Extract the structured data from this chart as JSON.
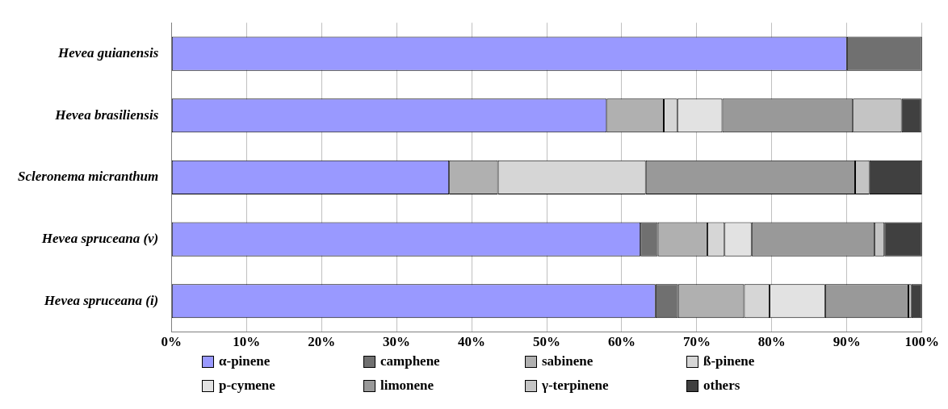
{
  "chart_data": {
    "type": "bar",
    "orientation": "horizontal",
    "stacked": true,
    "categories": [
      "Hevea guianensis",
      "Hevea brasiliensis",
      "Scleronema micranthum",
      "Hevea spruceana (v)",
      "Hevea spruceana (i)"
    ],
    "series": [
      {
        "name": "α-pinene",
        "color": "#9999ff",
        "values": [
          90,
          58,
          37,
          62.5,
          64.5
        ]
      },
      {
        "name": "camphene",
        "color": "#707070",
        "values": [
          10,
          0,
          0,
          2.3,
          3.0
        ]
      },
      {
        "name": "sabinene",
        "color": "#b0b0b0",
        "values": [
          0,
          7.6,
          6.5,
          6.6,
          8.8
        ]
      },
      {
        "name": "ß-pinene",
        "color": "#d6d6d6",
        "values": [
          0,
          1.8,
          19.7,
          2.3,
          3.4
        ]
      },
      {
        "name": "p-cymene",
        "color": "#e2e2e2",
        "values": [
          0,
          6.0,
          0,
          3.6,
          7.4
        ]
      },
      {
        "name": "limonene",
        "color": "#999999",
        "values": [
          0,
          17.4,
          27.9,
          16.4,
          11.1
        ]
      },
      {
        "name": "γ-terpinene",
        "color": "#c4c4c4",
        "values": [
          0,
          6.5,
          1.9,
          1.3,
          0.4
        ]
      },
      {
        "name": "others",
        "color": "#404040",
        "values": [
          0,
          2.6,
          7.0,
          5.0,
          1.4
        ]
      }
    ],
    "xlim": [
      0,
      100
    ],
    "xticks": [
      {
        "value": 0,
        "label": "0%"
      },
      {
        "value": 10,
        "label": "10%"
      },
      {
        "value": 20,
        "label": "20%"
      },
      {
        "value": 30,
        "label": "30%"
      },
      {
        "value": 40,
        "label": "40%"
      },
      {
        "value": 50,
        "label": "50%"
      },
      {
        "value": 60,
        "label": "60%"
      },
      {
        "value": 70,
        "label": "70%"
      },
      {
        "value": 80,
        "label": "80%"
      },
      {
        "value": 90,
        "label": "90%"
      },
      {
        "value": 100,
        "label": "100%"
      }
    ],
    "grid": "x",
    "legend": "bottom"
  }
}
